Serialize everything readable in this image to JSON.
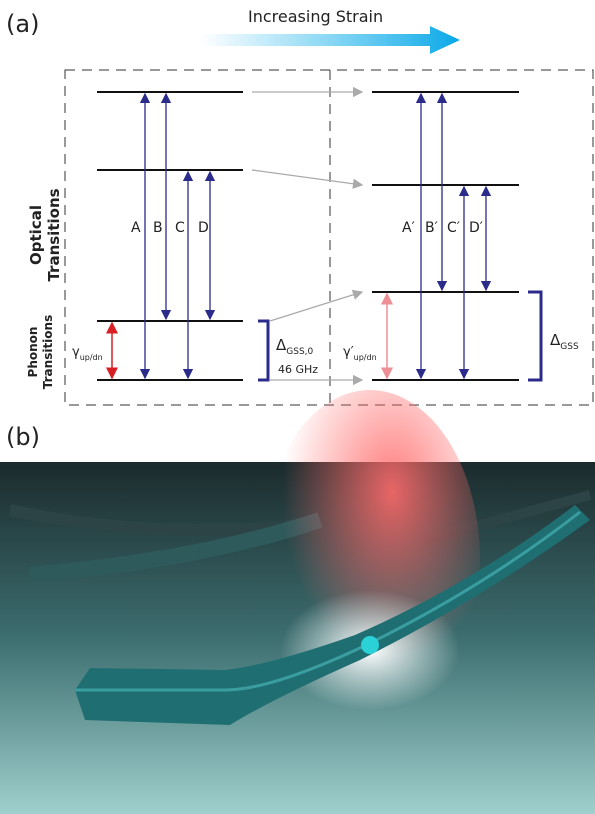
{
  "panel_a": {
    "label": "(a)",
    "strain_label": "Increasing Strain",
    "optical_label": [
      "Optical",
      "Transitions"
    ],
    "phonon_label": [
      "Phonon",
      "Transitions"
    ],
    "transitions_left": [
      "A",
      "B",
      "C",
      "D"
    ],
    "transitions_right": [
      "A′",
      "B′",
      "C′",
      "D′"
    ],
    "gamma": {
      "symbol": "γ",
      "subscript": "up/dn"
    },
    "gamma_prime": {
      "symbol": "γ′",
      "subscript": "up/dn"
    },
    "delta_0": {
      "symbol": "Δ",
      "subscript": "GSS,0"
    },
    "delta_0_value": "46 GHz",
    "delta": {
      "symbol": "Δ",
      "subscript": "GSS"
    }
  },
  "panel_b": {
    "label": "(b)"
  }
}
